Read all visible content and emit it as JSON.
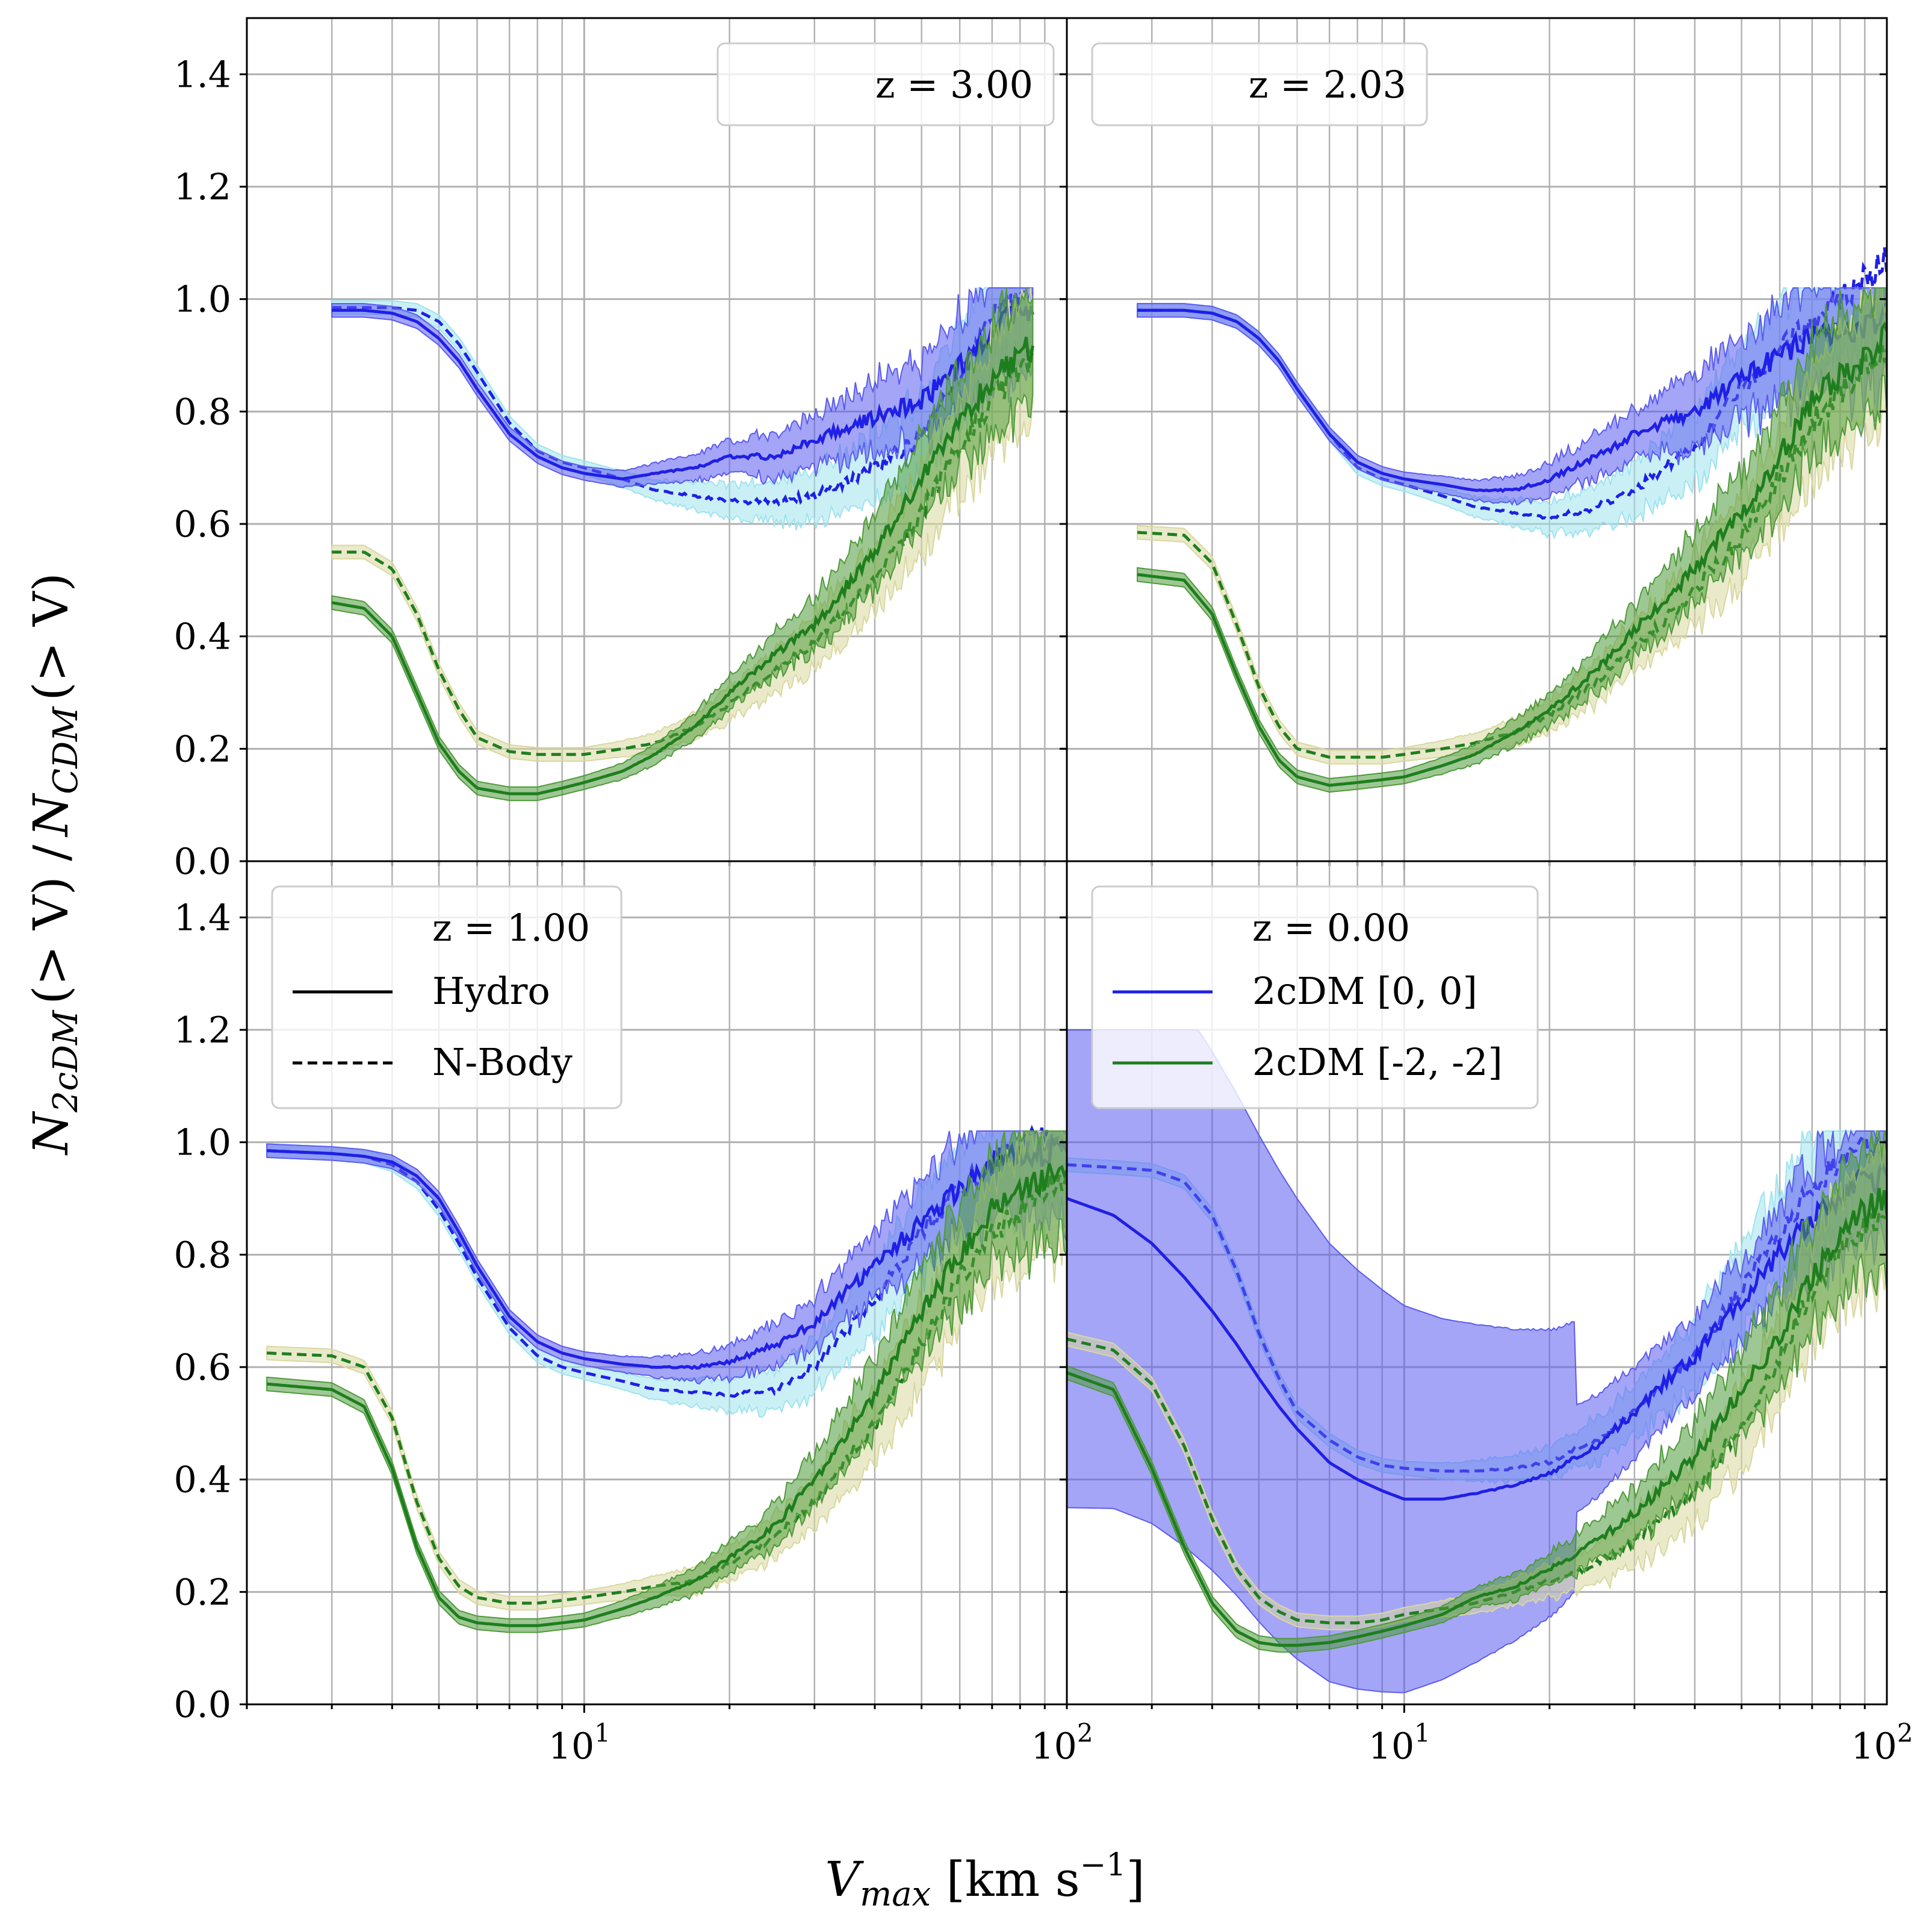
{
  "chart_data": {
    "type": "line",
    "layout": "2x2 grid of panels, shared axes",
    "xlabel": "V_max [km s^-1]",
    "xlabel_parts": {
      "sym": "V",
      "sub": "max",
      "unit": " [km s",
      "sup": "−1",
      "close": "]"
    },
    "ylabel": "N_2cDM(>V)/N_CDM(>V)",
    "ylabel_parts": {
      "n": "N",
      "sub1": "2cDM",
      "mid": "(> V) /",
      "n2": "N",
      "sub2": "CDM",
      "end": "(> V)"
    },
    "xscale": "log",
    "xlim": [
      2,
      100
    ],
    "ylim": [
      0,
      1.5
    ],
    "grid": true,
    "x_ticks": [
      {
        "base": "10",
        "exp": "1"
      },
      {
        "base": "10",
        "exp": "2"
      }
    ],
    "y_ticks": [
      "0.0",
      "0.2",
      "0.4",
      "0.6",
      "0.8",
      "1.0",
      "1.2",
      "1.4"
    ],
    "colors": {
      "blue": "#1f1fe6",
      "green": "#1e7e1e",
      "blue_band": "#5b5bf0",
      "cyan_band": "#9fe3ef",
      "green_band": "#4f9a3a",
      "olive_band": "#d9d8a0"
    },
    "legend_style": {
      "Hydro": "solid",
      "N-Body": "dashed"
    },
    "legend_model": {
      "2cDM [0, 0]": "blue",
      "2cDM [-2, -2]": "green"
    },
    "panels": [
      {
        "label": "z = 3.00",
        "legend_entries": [],
        "series": [
          {
            "name": "2cDM [0, 0] Hydro",
            "style": "solid",
            "x": [
              3.0,
              3.5,
              4.0,
              4.5,
              5.0,
              5.5,
              6.0,
              7.0,
              8.0,
              9.0,
              10,
              12,
              14,
              17,
              20,
              25,
              30,
              40,
              50,
              60,
              70,
              85
            ],
            "y": [
              0.98,
              0.98,
              0.975,
              0.96,
              0.93,
              0.89,
              0.84,
              0.76,
              0.72,
              0.7,
              0.69,
              0.68,
              0.69,
              0.7,
              0.72,
              0.72,
              0.75,
              0.79,
              0.82,
              0.88,
              0.95,
              0.98
            ]
          },
          {
            "name": "2cDM [0, 0] N-Body",
            "style": "dashed",
            "x": [
              3.0,
              3.5,
              4.0,
              4.5,
              5.0,
              5.5,
              6.0,
              7.0,
              8.0,
              9.0,
              10,
              12,
              14,
              17,
              20,
              25,
              30,
              40,
              50,
              60,
              70,
              85
            ],
            "y": [
              0.985,
              0.985,
              0.985,
              0.98,
              0.96,
              0.92,
              0.87,
              0.78,
              0.73,
              0.71,
              0.7,
              0.68,
              0.66,
              0.65,
              0.64,
              0.64,
              0.65,
              0.7,
              0.75,
              0.86,
              0.97,
              1.02
            ]
          },
          {
            "name": "2cDM [-2, -2] Hydro",
            "style": "solid",
            "x": [
              3.0,
              3.5,
              4.0,
              4.5,
              5.0,
              5.5,
              6.0,
              7.0,
              8.0,
              9.0,
              10,
              12,
              14,
              17,
              20,
              25,
              30,
              40,
              50,
              60,
              70,
              85
            ],
            "y": [
              0.46,
              0.45,
              0.4,
              0.3,
              0.21,
              0.16,
              0.13,
              0.12,
              0.12,
              0.13,
              0.14,
              0.16,
              0.19,
              0.24,
              0.3,
              0.37,
              0.42,
              0.55,
              0.68,
              0.78,
              0.86,
              0.92
            ]
          },
          {
            "name": "2cDM [-2, -2] N-Body",
            "style": "dashed",
            "x": [
              3.0,
              3.5,
              4.0,
              4.5,
              5.0,
              5.5,
              6.0,
              7.0,
              8.0,
              9.0,
              10,
              12,
              14,
              17,
              20,
              25,
              30,
              40,
              50,
              60,
              70,
              85
            ],
            "y": [
              0.55,
              0.55,
              0.52,
              0.44,
              0.34,
              0.27,
              0.22,
              0.195,
              0.19,
              0.19,
              0.19,
              0.2,
              0.21,
              0.24,
              0.28,
              0.34,
              0.39,
              0.5,
              0.62,
              0.74,
              0.82,
              0.9
            ]
          }
        ]
      },
      {
        "label": "z = 2.03",
        "legend_entries": [],
        "series": [
          {
            "name": "2cDM [0, 0] Hydro",
            "style": "solid",
            "x": [
              2.8,
              3.5,
              4.0,
              4.5,
              5.0,
              5.5,
              6.0,
              7.0,
              8.0,
              9.0,
              10,
              12,
              14,
              17,
              20,
              25,
              30,
              40,
              50,
              60,
              70,
              85,
              100
            ],
            "y": [
              0.98,
              0.98,
              0.975,
              0.96,
              0.93,
              0.89,
              0.84,
              0.76,
              0.71,
              0.69,
              0.68,
              0.67,
              0.66,
              0.66,
              0.68,
              0.72,
              0.76,
              0.8,
              0.86,
              0.9,
              0.93,
              0.95,
              0.97
            ]
          },
          {
            "name": "2cDM [0, 0] N-Body",
            "style": "dashed",
            "x": [
              2.8,
              3.5,
              4.0,
              4.5,
              5.0,
              5.5,
              6.0,
              7.0,
              8.0,
              9.0,
              10,
              12,
              14,
              17,
              20,
              25,
              30,
              40,
              50,
              60,
              70,
              85,
              100
            ],
            "y": [
              0.98,
              0.98,
              0.975,
              0.96,
              0.93,
              0.89,
              0.84,
              0.76,
              0.7,
              0.68,
              0.67,
              0.65,
              0.63,
              0.62,
              0.61,
              0.63,
              0.66,
              0.74,
              0.84,
              0.91,
              0.96,
              1.02,
              1.07
            ]
          },
          {
            "name": "2cDM [-2, -2] Hydro",
            "style": "solid",
            "x": [
              2.8,
              3.5,
              4.0,
              4.5,
              5.0,
              5.5,
              6.0,
              7.0,
              8.0,
              9.0,
              10,
              12,
              14,
              17,
              20,
              25,
              30,
              40,
              50,
              60,
              70,
              85,
              100
            ],
            "y": [
              0.51,
              0.5,
              0.44,
              0.33,
              0.24,
              0.18,
              0.15,
              0.135,
              0.14,
              0.145,
              0.15,
              0.17,
              0.19,
              0.23,
              0.27,
              0.34,
              0.41,
              0.52,
              0.62,
              0.72,
              0.82,
              0.88,
              0.93
            ]
          },
          {
            "name": "2cDM [-2, -2] N-Body",
            "style": "dashed",
            "x": [
              2.8,
              3.5,
              4.0,
              4.5,
              5.0,
              5.5,
              6.0,
              7.0,
              8.0,
              9.0,
              10,
              12,
              14,
              17,
              20,
              25,
              30,
              40,
              50,
              60,
              70,
              85,
              100
            ],
            "y": [
              0.585,
              0.58,
              0.53,
              0.42,
              0.31,
              0.24,
              0.2,
              0.185,
              0.185,
              0.185,
              0.19,
              0.2,
              0.21,
              0.23,
              0.26,
              0.32,
              0.38,
              0.48,
              0.58,
              0.68,
              0.78,
              0.86,
              0.92
            ]
          }
        ]
      },
      {
        "label": "z = 1.00",
        "legend_entries": [
          "Hydro",
          "N-Body"
        ],
        "series": [
          {
            "name": "2cDM [0, 0] Hydro",
            "style": "solid",
            "x": [
              2.2,
              3.0,
              3.5,
              4.0,
              4.5,
              5.0,
              5.5,
              6.0,
              7.0,
              8.0,
              9.0,
              10,
              12,
              14,
              17,
              20,
              25,
              30,
              40,
              50,
              60,
              70,
              85,
              100
            ],
            "y": [
              0.985,
              0.98,
              0.975,
              0.965,
              0.94,
              0.9,
              0.84,
              0.78,
              0.69,
              0.645,
              0.625,
              0.615,
              0.605,
              0.6,
              0.6,
              0.61,
              0.64,
              0.68,
              0.78,
              0.86,
              0.92,
              0.96,
              0.98,
              0.99
            ]
          },
          {
            "name": "2cDM [0, 0] N-Body",
            "style": "dashed",
            "x": [
              2.2,
              3.0,
              3.5,
              4.0,
              4.5,
              5.0,
              5.5,
              6.0,
              7.0,
              8.0,
              9.0,
              10,
              12,
              14,
              17,
              20,
              25,
              30,
              40,
              50,
              60,
              70,
              85,
              100
            ],
            "y": [
              0.985,
              0.98,
              0.975,
              0.96,
              0.93,
              0.88,
              0.82,
              0.76,
              0.67,
              0.62,
              0.6,
              0.59,
              0.575,
              0.56,
              0.555,
              0.55,
              0.56,
              0.6,
              0.72,
              0.84,
              0.92,
              0.96,
              1.0,
              1.0
            ]
          },
          {
            "name": "2cDM [-2, -2] Hydro",
            "style": "solid",
            "x": [
              2.2,
              3.0,
              3.5,
              4.0,
              4.5,
              5.0,
              5.5,
              6.0,
              7.0,
              8.0,
              9.0,
              10,
              12,
              14,
              17,
              20,
              25,
              30,
              40,
              50,
              60,
              70,
              85,
              100
            ],
            "y": [
              0.57,
              0.56,
              0.53,
              0.42,
              0.28,
              0.19,
              0.155,
              0.145,
              0.14,
              0.14,
              0.145,
              0.15,
              0.17,
              0.19,
              0.22,
              0.26,
              0.32,
              0.4,
              0.55,
              0.7,
              0.8,
              0.88,
              0.92,
              0.95
            ]
          },
          {
            "name": "2cDM [-2, -2] N-Body",
            "style": "dashed",
            "x": [
              2.2,
              3.0,
              3.5,
              4.0,
              4.5,
              5.0,
              5.5,
              6.0,
              7.0,
              8.0,
              9.0,
              10,
              12,
              14,
              17,
              20,
              25,
              30,
              40,
              50,
              60,
              70,
              85,
              100
            ],
            "y": [
              0.625,
              0.62,
              0.6,
              0.51,
              0.36,
              0.26,
              0.21,
              0.19,
              0.18,
              0.18,
              0.185,
              0.19,
              0.2,
              0.21,
              0.22,
              0.25,
              0.3,
              0.36,
              0.5,
              0.64,
              0.76,
              0.84,
              0.9,
              0.94
            ]
          }
        ]
      },
      {
        "label": "z = 0.00",
        "legend_entries": [
          "2cDM [0, 0]",
          "2cDM [-2, -2]"
        ],
        "series": [
          {
            "name": "2cDM [0, 0] Hydro",
            "style": "solid",
            "x": [
              2.0,
              2.5,
              3.0,
              3.5,
              4.0,
              4.5,
              5.0,
              5.5,
              6.0,
              7.0,
              8.0,
              9.0,
              10,
              12,
              14,
              17,
              20,
              25,
              30,
              40,
              50,
              60,
              70,
              85,
              100
            ],
            "y": [
              0.9,
              0.87,
              0.82,
              0.76,
              0.7,
              0.64,
              0.58,
              0.53,
              0.49,
              0.43,
              0.4,
              0.38,
              0.365,
              0.365,
              0.375,
              0.39,
              0.41,
              0.46,
              0.52,
              0.62,
              0.72,
              0.8,
              0.86,
              0.92,
              0.94
            ]
          },
          {
            "name": "2cDM [0, 0] N-Body",
            "style": "dashed",
            "x": [
              2.0,
              2.5,
              3.0,
              3.5,
              4.0,
              4.5,
              5.0,
              5.5,
              6.0,
              7.0,
              8.0,
              9.0,
              10,
              12,
              14,
              17,
              20,
              25,
              30,
              40,
              50,
              60,
              70,
              85,
              100
            ],
            "y": [
              0.96,
              0.955,
              0.95,
              0.93,
              0.87,
              0.77,
              0.66,
              0.58,
              0.52,
              0.47,
              0.44,
              0.425,
              0.42,
              0.415,
              0.415,
              0.42,
              0.43,
              0.47,
              0.52,
              0.62,
              0.74,
              0.84,
              0.92,
              0.98,
              1.0
            ]
          },
          {
            "name": "2cDM [-2, -2] Hydro",
            "style": "solid",
            "x": [
              2.0,
              2.5,
              3.0,
              3.5,
              4.0,
              4.5,
              5.0,
              5.5,
              6.0,
              7.0,
              8.0,
              9.0,
              10,
              12,
              14,
              17,
              20,
              25,
              30,
              40,
              50,
              60,
              70,
              85,
              100
            ],
            "y": [
              0.59,
              0.56,
              0.42,
              0.28,
              0.18,
              0.13,
              0.11,
              0.105,
              0.105,
              0.11,
              0.12,
              0.13,
              0.14,
              0.16,
              0.19,
              0.21,
              0.24,
              0.29,
              0.34,
              0.44,
              0.56,
              0.66,
              0.76,
              0.86,
              0.9
            ]
          },
          {
            "name": "2cDM [-2, -2] N-Body",
            "style": "dashed",
            "x": [
              2.0,
              2.5,
              3.0,
              3.5,
              4.0,
              4.5,
              5.0,
              5.5,
              6.0,
              7.0,
              8.0,
              9.0,
              10,
              12,
              14,
              17,
              20,
              25,
              30,
              40,
              50,
              60,
              70,
              85,
              100
            ],
            "y": [
              0.65,
              0.63,
              0.57,
              0.46,
              0.33,
              0.24,
              0.19,
              0.165,
              0.15,
              0.145,
              0.145,
              0.15,
              0.16,
              0.17,
              0.18,
              0.2,
              0.22,
              0.25,
              0.29,
              0.38,
              0.5,
              0.62,
              0.74,
              0.84,
              0.88
            ]
          }
        ]
      }
    ]
  }
}
